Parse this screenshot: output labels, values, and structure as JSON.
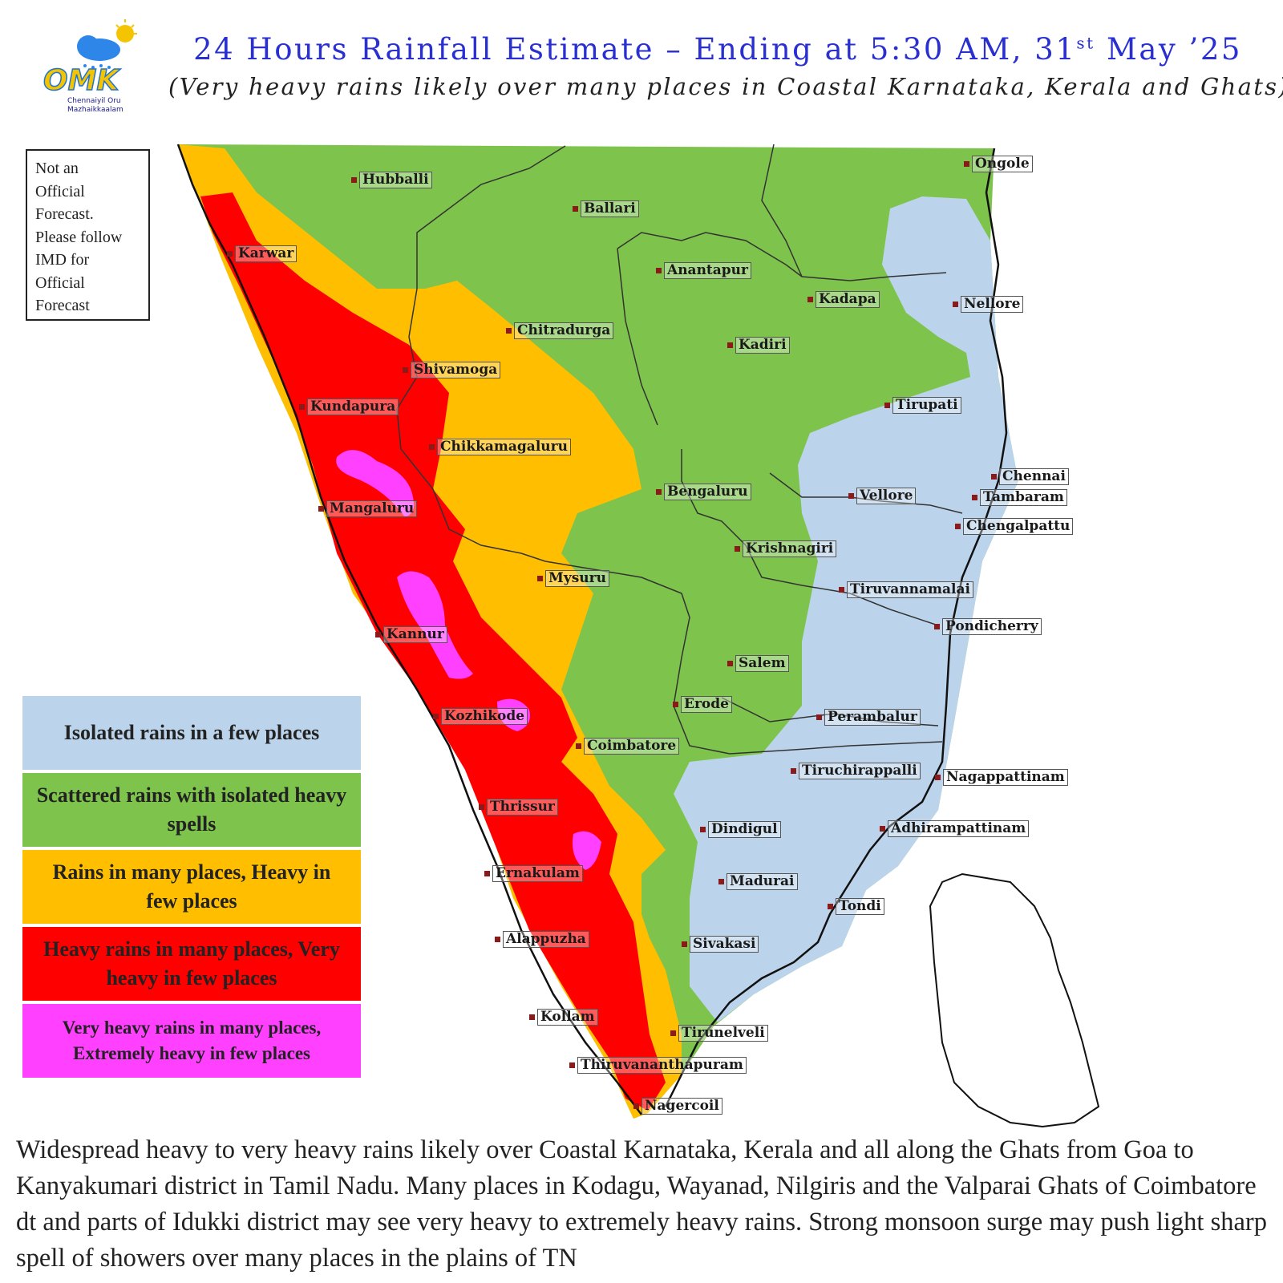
{
  "logo": {
    "brand": "OMK",
    "tagline_1": "Chennaiyil Oru",
    "tagline_2": "Mazhaikkaalam"
  },
  "header": {
    "title_main": "24 Hours Rainfall Estimate – Ending at 5:30 AM, 31",
    "title_sup": "st",
    "title_end": " May ’25",
    "subtitle": "(Very heavy rains likely over many places in Coastal Karnataka, Kerala and Ghats)"
  },
  "disclaimer": "Not an\nOfficial\nForecast.\nPlease follow\nIMD for\nOfficial\nForecast",
  "legend": [
    {
      "label": "Isolated rains in a few places",
      "color": "#bcd4eb"
    },
    {
      "label": "Scattered rains with isolated heavy spells",
      "color": "#7dc34c"
    },
    {
      "label": "Rains in many places, Heavy in few places",
      "color": "#ffbf00"
    },
    {
      "label": "Heavy rains in many places, Very heavy in few places",
      "color": "#ff0000"
    },
    {
      "label": "Very heavy rains in many places, Extremely heavy in few places",
      "color": "#ff40ff"
    }
  ],
  "cities": {
    "hubballi": "Hubballi",
    "ballari": "Ballari",
    "ongole": "Ongole",
    "karwar": "Karwar",
    "anantapur": "Anantapur",
    "kadapa": "Kadapa",
    "nellore": "Nellore",
    "chitradurga": "Chitradurga",
    "kadiri": "Kadiri",
    "shivamoga": "Shivamoga",
    "kundapura": "Kundapura",
    "tirupati": "Tirupati",
    "chikkamagaluru": "Chikkamagaluru",
    "chennai": "Chennai",
    "bengaluru": "Bengaluru",
    "vellore": "Vellore",
    "tambaram": "Tambaram",
    "mangaluru": "Mangaluru",
    "chengalpattu": "Chengalpattu",
    "krishnagiri": "Krishnagiri",
    "mysuru": "Mysuru",
    "tiruvannamalai": "Tiruvannamalai",
    "pondicherry": "Pondicherry",
    "kannur": "Kannur",
    "salem": "Salem",
    "erode": "Erode",
    "kozhikode": "Kozhikode",
    "perambalur": "Perambalur",
    "coimbatore": "Coimbatore",
    "tiruchirappalli": "Tiruchirappalli",
    "nagappattinam": "Nagappattinam",
    "thrissur": "Thrissur",
    "dindigul": "Dindigul",
    "adhirampattinam": "Adhirampattinam",
    "ernakulam": "Ernakulam",
    "madurai": "Madurai",
    "tondi": "Tondi",
    "alappuzha": "Alappuzha",
    "sivakasi": "Sivakasi",
    "kollam": "Kollam",
    "tirunelveli": "Tirunelveli",
    "thiruvananthapuram": "Thiruvananthapuram",
    "nagercoil": "Nagercoil"
  },
  "footer": "Widespread heavy to very heavy rains likely over Coastal Karnataka, Kerala and all along the Ghats from Goa to Kanyakumari district in Tamil Nadu.  Many places in Kodagu, Wayanad, Nilgiris and the Valparai Ghats of Coimbatore dt and parts of Idukki district may see very heavy to extremely heavy rains. Strong monsoon surge may push light sharp spell of showers over many places in the plains of TN"
}
